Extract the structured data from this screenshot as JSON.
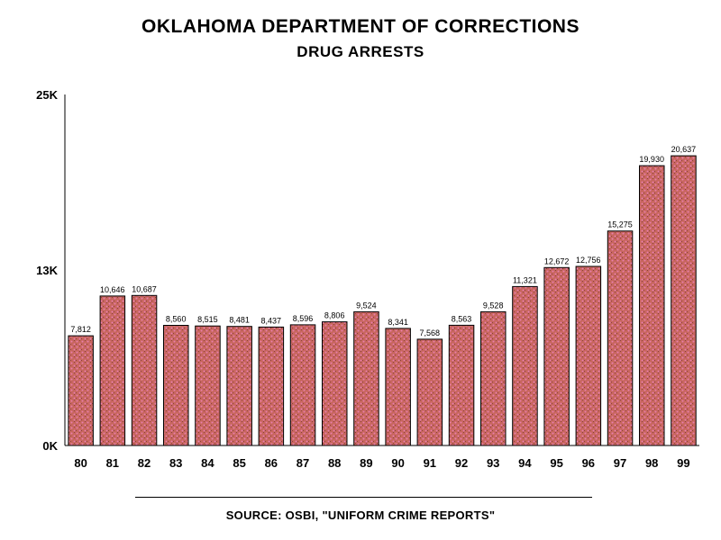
{
  "chart_data": {
    "type": "bar",
    "title": "OKLAHOMA DEPARTMENT OF CORRECTIONS",
    "subtitle": "DRUG ARRESTS",
    "categories": [
      "80",
      "81",
      "82",
      "83",
      "84",
      "85",
      "86",
      "87",
      "88",
      "89",
      "90",
      "91",
      "92",
      "93",
      "94",
      "95",
      "96",
      "97",
      "98",
      "99"
    ],
    "values": [
      7812,
      10646,
      10687,
      8560,
      8515,
      8481,
      8437,
      8596,
      8806,
      9524,
      8341,
      7568,
      8563,
      9528,
      11321,
      12672,
      12756,
      15275,
      19930,
      20637
    ],
    "value_labels": [
      "7,812",
      "10,646",
      "10,687",
      "8,560",
      "8,515",
      "8,481",
      "8,437",
      "8,596",
      "8,806",
      "9,524",
      "8,341",
      "7,568",
      "8,563",
      "9,528",
      "11,321",
      "12,672",
      "12,756",
      "15,275",
      "19,930",
      "20,637"
    ],
    "yticks": [
      {
        "value": 0,
        "label": "0K"
      },
      {
        "value": 12500,
        "label": "13K"
      },
      {
        "value": 25000,
        "label": "25K"
      }
    ],
    "ylim": [
      0,
      25000
    ],
    "xlabel": "",
    "ylabel": "",
    "grid": false,
    "bar_color": "#c8665e",
    "bar_texture_color": "#e87fb0",
    "source": "SOURCE:  OSBI, \"UNIFORM CRIME REPORTS\""
  }
}
